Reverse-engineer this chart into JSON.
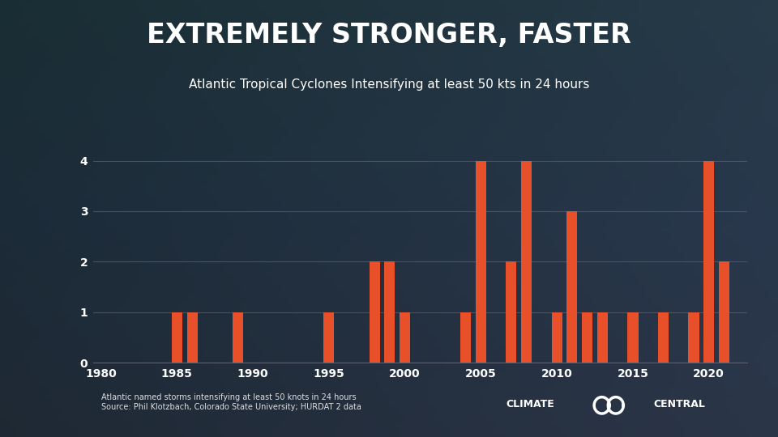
{
  "title": "EXTREMELY STRONGER, FASTER",
  "subtitle": "Atlantic Tropical Cyclones Intensifying at least 50 kts in 24 hours",
  "footnote_line1": "Atlantic named storms intensifying at least 50 knots in 24 hours",
  "footnote_line2": "Source: Phil Klotzbach, Colorado State University; HURDAT 2 data",
  "bar_color": "#E8502A",
  "bg_color": "#1e2838",
  "plot_bg_color": "#1e2838",
  "text_color": "#ffffff",
  "grid_color": "#5a6070",
  "years": [
    1980,
    1981,
    1982,
    1983,
    1984,
    1985,
    1986,
    1987,
    1988,
    1989,
    1990,
    1991,
    1992,
    1993,
    1994,
    1995,
    1996,
    1997,
    1998,
    1999,
    2000,
    2001,
    2002,
    2003,
    2004,
    2005,
    2006,
    2007,
    2008,
    2009,
    2010,
    2011,
    2012,
    2013,
    2014,
    2015,
    2016,
    2017,
    2018,
    2019,
    2020,
    2021
  ],
  "values": [
    0,
    0,
    0,
    0,
    0,
    1,
    1,
    0,
    0,
    1,
    0,
    0,
    0,
    0,
    0,
    1,
    0,
    0,
    2,
    2,
    1,
    0,
    0,
    0,
    1,
    4,
    0,
    2,
    4,
    0,
    1,
    3,
    1,
    1,
    0,
    1,
    0,
    1,
    0,
    1,
    4,
    2
  ],
  "xlim": [
    1979.5,
    2022.5
  ],
  "ylim": [
    0,
    4.5
  ],
  "yticks": [
    0,
    1,
    2,
    3,
    4
  ],
  "xticks": [
    1980,
    1985,
    1990,
    1995,
    2000,
    2005,
    2010,
    2015,
    2020
  ],
  "title_fontsize": 24,
  "subtitle_fontsize": 11,
  "tick_fontsize": 10,
  "footnote_fontsize": 7,
  "logo_fontsize": 9
}
